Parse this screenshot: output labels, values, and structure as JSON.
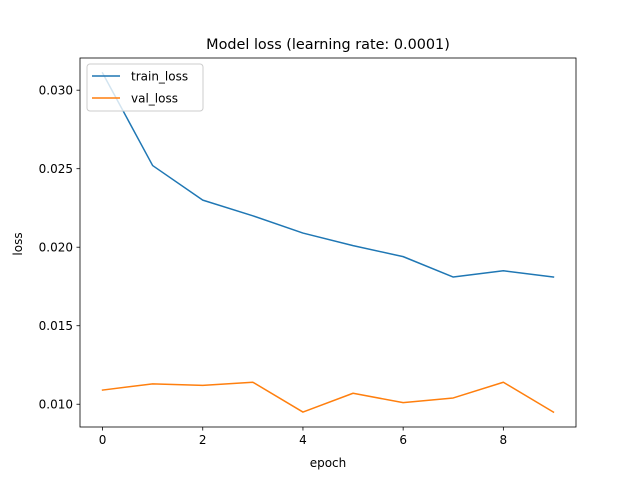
{
  "chart_data": {
    "type": "line",
    "title": "Model loss (learning rate: 0.0001)",
    "xlabel": "epoch",
    "ylabel": "loss",
    "xlim": [
      -0.45,
      9.45
    ],
    "ylim": [
      0.00855,
      0.03205
    ],
    "xticks": [
      0,
      2,
      4,
      6,
      8
    ],
    "xtick_labels": [
      "0",
      "2",
      "4",
      "6",
      "8"
    ],
    "yticks": [
      0.01,
      0.015,
      0.02,
      0.025,
      0.03
    ],
    "ytick_labels": [
      "0.010",
      "0.015",
      "0.020",
      "0.025",
      "0.030"
    ],
    "grid": false,
    "legend_position": "top-left",
    "x": [
      0,
      1,
      2,
      3,
      4,
      5,
      6,
      7,
      8,
      9
    ],
    "series": [
      {
        "name": "train_loss",
        "color": "#1f77b4",
        "values": [
          0.0311,
          0.0252,
          0.023,
          0.022,
          0.0209,
          0.0201,
          0.0194,
          0.0181,
          0.0185,
          0.0181
        ]
      },
      {
        "name": "val_loss",
        "color": "#ff7f0e",
        "values": [
          0.0109,
          0.0113,
          0.0112,
          0.0114,
          0.0095,
          0.0107,
          0.0101,
          0.0104,
          0.0114,
          0.0095
        ]
      }
    ]
  }
}
